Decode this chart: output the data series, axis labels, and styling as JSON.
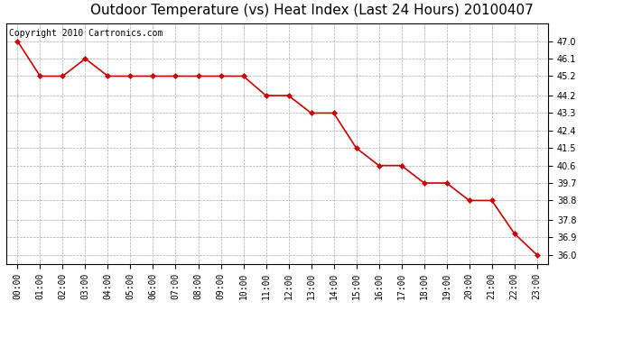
{
  "title": "Outdoor Temperature (vs) Heat Index (Last 24 Hours) 20100407",
  "copyright_text": "Copyright 2010 Cartronics.com",
  "x_labels": [
    "00:00",
    "01:00",
    "02:00",
    "03:00",
    "04:00",
    "05:00",
    "06:00",
    "07:00",
    "08:00",
    "09:00",
    "10:00",
    "11:00",
    "12:00",
    "13:00",
    "14:00",
    "15:00",
    "16:00",
    "17:00",
    "18:00",
    "19:00",
    "20:00",
    "21:00",
    "22:00",
    "23:00"
  ],
  "y_values": [
    47.0,
    45.2,
    45.2,
    46.1,
    45.2,
    45.2,
    45.2,
    45.2,
    45.2,
    45.2,
    45.2,
    44.2,
    44.2,
    43.3,
    43.3,
    41.5,
    40.6,
    40.6,
    39.7,
    39.7,
    38.8,
    38.8,
    37.1,
    36.0
  ],
  "line_color": "#cc0000",
  "marker": "D",
  "marker_size": 3,
  "ylim_min": 35.55,
  "ylim_max": 47.9,
  "yticks": [
    36.0,
    36.9,
    37.8,
    38.8,
    39.7,
    40.6,
    41.5,
    42.4,
    43.3,
    44.2,
    45.2,
    46.1,
    47.0
  ],
  "background_color": "#ffffff",
  "plot_bg_color": "#ffffff",
  "grid_color": "#aaaaaa",
  "title_fontsize": 11,
  "copyright_fontsize": 7,
  "tick_fontsize": 7,
  "ytick_fontsize": 7
}
